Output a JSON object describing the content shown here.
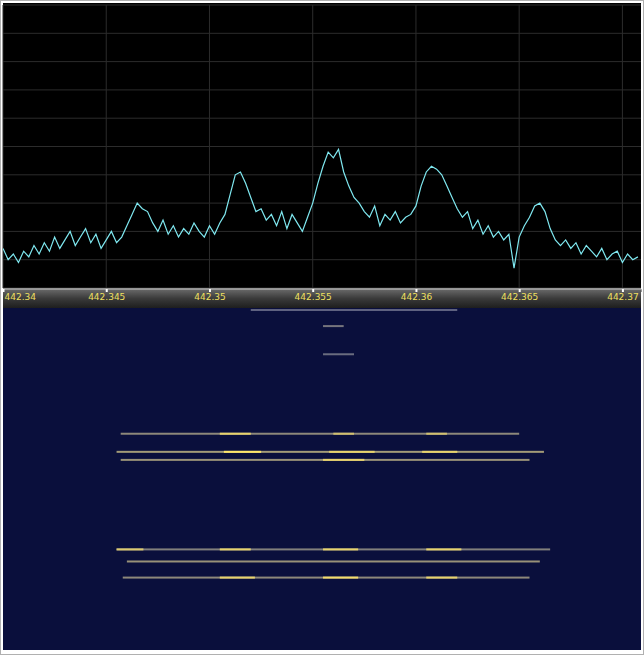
{
  "chart_data": [
    {
      "type": "line",
      "x": [
        442.34,
        442.34025,
        442.3405,
        442.34075,
        442.341,
        442.34125,
        442.3415,
        442.34175,
        442.342,
        442.34225,
        442.3425,
        442.34275,
        442.343,
        442.34325,
        442.3435,
        442.34375,
        442.344,
        442.34425,
        442.3445,
        442.34475,
        442.345,
        442.34525,
        442.3455,
        442.34575,
        442.346,
        442.34625,
        442.3465,
        442.34675,
        442.347,
        442.34725,
        442.3475,
        442.34775,
        442.348,
        442.34825,
        442.3485,
        442.34875,
        442.349,
        442.34925,
        442.3495,
        442.34975,
        442.35,
        442.35025,
        442.3505,
        442.35075,
        442.351,
        442.35125,
        442.3515,
        442.35175,
        442.352,
        442.35225,
        442.3525,
        442.35275,
        442.353,
        442.35325,
        442.3535,
        442.35375,
        442.354,
        442.35425,
        442.3545,
        442.35475,
        442.355,
        442.35525,
        442.3555,
        442.35575,
        442.356,
        442.35625,
        442.3565,
        442.35675,
        442.357,
        442.35725,
        442.3575,
        442.35775,
        442.358,
        442.35825,
        442.3585,
        442.35875,
        442.359,
        442.35925,
        442.3595,
        442.35975,
        442.36,
        442.36025,
        442.3605,
        442.36075,
        442.361,
        442.36125,
        442.3615,
        442.36175,
        442.362,
        442.36225,
        442.3625,
        442.36275,
        442.363,
        442.36325,
        442.3635,
        442.36375,
        442.364,
        442.36425,
        442.3645,
        442.36475,
        442.365,
        442.36525,
        442.3655,
        442.36575,
        442.366,
        442.36625,
        442.3665,
        442.36675,
        442.367,
        442.36725,
        442.3675,
        442.36775,
        442.368,
        442.36825,
        442.3685,
        442.36875,
        442.369,
        442.36925,
        442.3695,
        442.36975,
        442.37,
        442.37025,
        442.3705,
        442.37075
      ],
      "values": [
        14,
        10,
        12,
        9,
        13,
        11,
        15,
        12,
        16,
        13,
        18,
        14,
        17,
        20,
        15,
        18,
        21,
        16,
        19,
        14,
        17,
        20,
        16,
        18,
        22,
        26,
        30,
        28,
        27,
        23,
        20,
        24,
        19,
        22,
        18,
        21,
        19,
        23,
        20,
        18,
        22,
        19,
        23,
        26,
        33,
        40,
        41,
        37,
        32,
        27,
        28,
        24,
        26,
        22,
        27,
        21,
        26,
        23,
        20,
        25,
        30,
        37,
        43,
        48,
        46,
        49,
        41,
        36,
        32,
        30,
        27,
        25,
        29,
        22,
        26,
        24,
        27,
        23,
        25,
        26,
        29,
        36,
        41,
        43,
        42,
        40,
        36,
        32,
        28,
        25,
        27,
        21,
        24,
        19,
        22,
        18,
        20,
        17,
        19,
        7,
        18,
        22,
        25,
        29,
        30,
        27,
        21,
        17,
        15,
        17,
        14,
        16,
        12,
        15,
        13,
        11,
        14,
        10,
        12,
        13,
        9,
        12,
        10,
        11
      ],
      "color": "#7fe8f0",
      "xlim": [
        442.34,
        442.3709
      ],
      "xticks": [
        442.34,
        442.345,
        442.35,
        442.355,
        442.36,
        442.365,
        442.37
      ],
      "ylim": [
        0,
        100
      ],
      "yticks": [
        0,
        10,
        20,
        30,
        40,
        50,
        60,
        70,
        80,
        90,
        100
      ],
      "grid": true,
      "tick_labels": "x"
    },
    {
      "type": "waterfall",
      "xlim": [
        442.34,
        442.3709
      ],
      "ylim": [
        0,
        340
      ],
      "segments": {
        "x0": [
          442.352,
          442.3555,
          442.3555,
          442.3457,
          442.3455,
          442.3457,
          442.3455,
          442.346,
          442.3458,
          442.3505,
          442.356,
          442.3605,
          442.3507,
          442.3558,
          442.3603,
          442.3555,
          442.3455,
          442.3505,
          442.3555,
          442.3605,
          442.3505,
          442.3555,
          442.3605
        ],
        "x1": [
          442.362,
          442.3565,
          442.357,
          442.365,
          442.3662,
          442.3655,
          442.3665,
          442.366,
          442.3655,
          442.352,
          442.357,
          442.3615,
          442.3525,
          442.358,
          442.362,
          442.3575,
          442.3468,
          442.352,
          442.3572,
          442.3622,
          442.3522,
          442.3572,
          442.362
        ],
        "row": [
          2,
          18,
          46,
          125,
          143,
          151,
          240,
          252,
          268,
          125,
          125,
          125,
          143,
          143,
          143,
          151,
          240,
          240,
          240,
          240,
          268,
          268,
          268
        ],
        "intensity": [
          0.3,
          0.4,
          0.35,
          0.5,
          0.6,
          0.55,
          0.45,
          0.55,
          0.5,
          0.9,
          0.8,
          0.8,
          1.0,
          0.9,
          0.9,
          0.9,
          0.85,
          0.9,
          0.9,
          0.9,
          0.9,
          0.95,
          0.9
        ]
      }
    }
  ]
}
